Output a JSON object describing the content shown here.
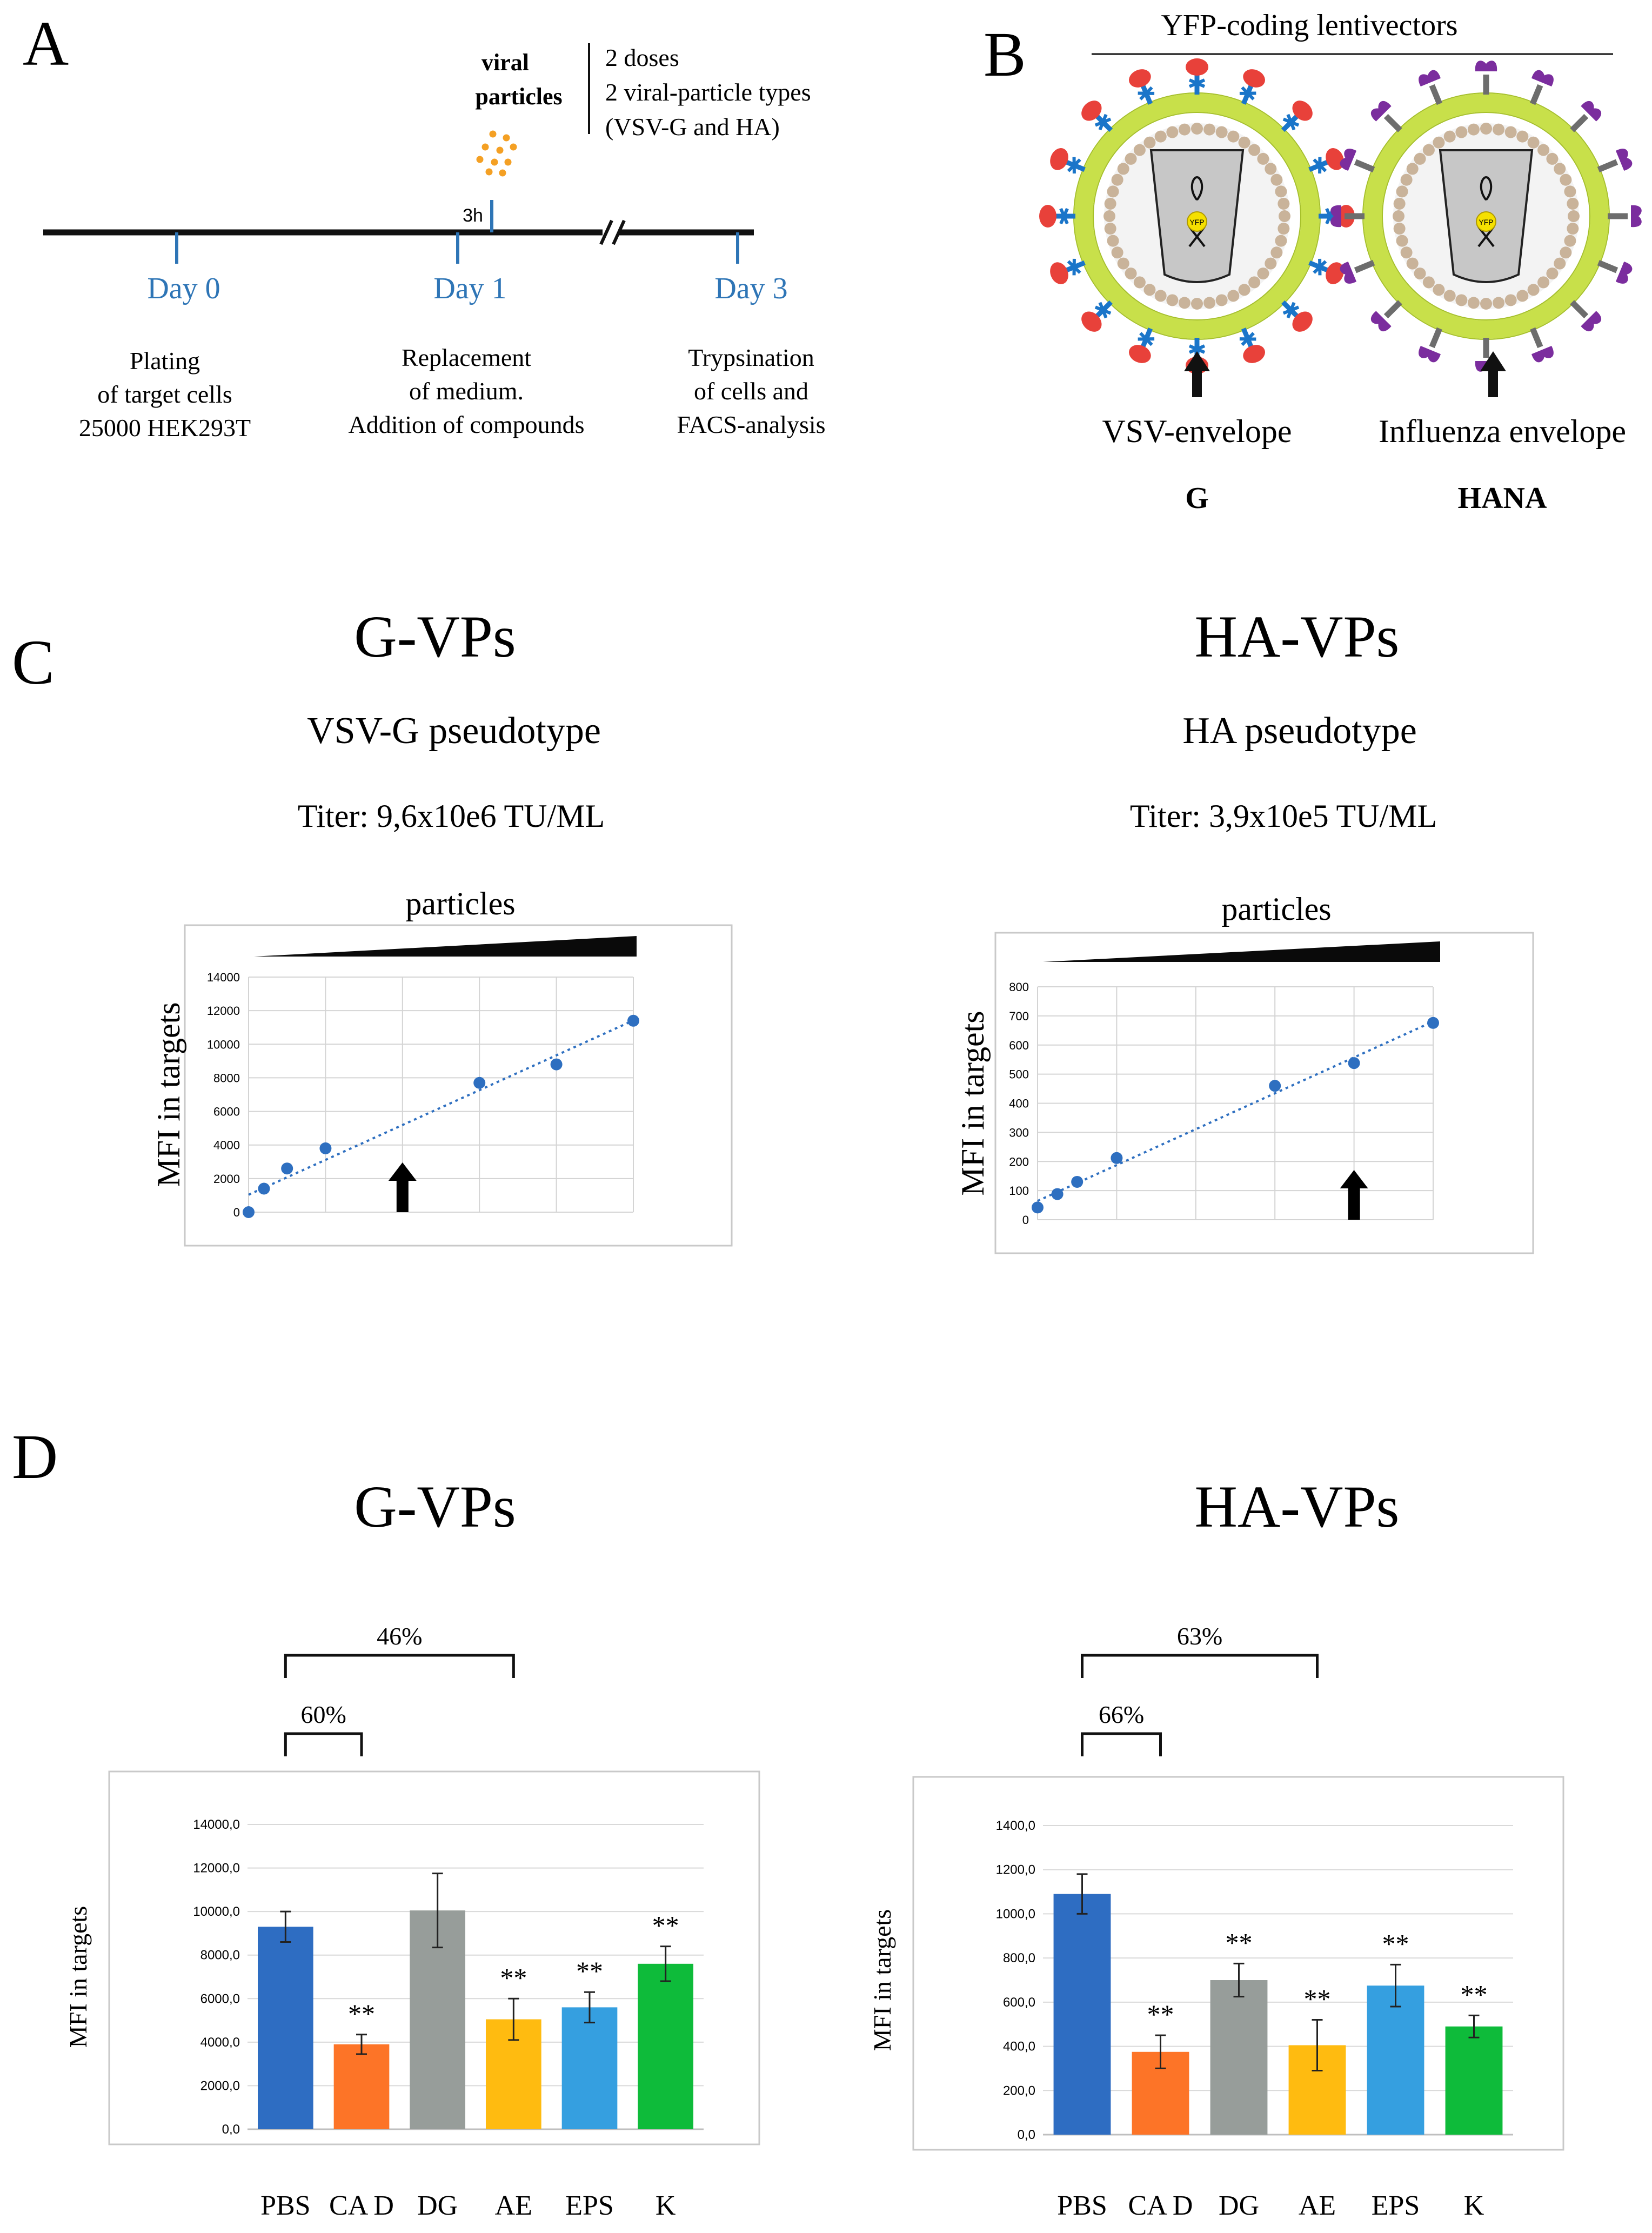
{
  "panel_labels": {
    "a": "A",
    "b": "B",
    "c": "C",
    "d": "D"
  },
  "panel_a": {
    "particles_label_line1": "viral",
    "particles_label_line2": "particles",
    "notes": [
      "2 doses",
      "2 viral-particle types",
      "(VSV-G and HA)"
    ],
    "time_marker": "3h",
    "days": [
      {
        "label": "Day 0",
        "lines": [
          "Plating",
          "of target cells",
          "25000 HEK293T"
        ]
      },
      {
        "label": "Day 1",
        "lines": [
          "Replacement",
          "of medium.",
          "Addition of compounds"
        ]
      },
      {
        "label": "Day 3",
        "lines": [
          "Trypsination",
          "of cells and",
          "FACS-analysis"
        ]
      }
    ],
    "day_color": "#2e75b6",
    "dot_color": "#f4a024"
  },
  "panel_b": {
    "title": "YFP-coding lentivectors",
    "core_label": "YFP",
    "left": {
      "envelope": "VSV-envelope",
      "short": "G"
    },
    "right": {
      "envelope": "Influenza envelope",
      "short": "HANA"
    },
    "membrane_color": "#c8e04a",
    "capsid_color": "#c9b39a",
    "vsv_head_color": "#e8413a",
    "vsv_stem_color": "#1a75c9",
    "ha_head_color": "#7b2d9e",
    "ha_stem_color": "#6d6d6d"
  },
  "panel_c": [
    {
      "title": "G-VPs",
      "subtitle": "VSV-G pseudotype",
      "titer": "Titer: 9,6x10e6 TU/ML",
      "wedge_label": "particles"
    },
    {
      "title": "HA-VPs",
      "subtitle": "HA pseudotype",
      "titer": "Titer: 3,9x10e5 TU/ML",
      "wedge_label": "particles"
    }
  ],
  "panel_d": [
    {
      "title": "G-VPs",
      "bracket_outer": "46%",
      "bracket_inner": "60%",
      "significance": "**"
    },
    {
      "title": "HA-VPs",
      "bracket_outer": "63%",
      "bracket_inner": "66%",
      "significance": "**"
    }
  ],
  "chart_data": [
    {
      "type": "scatter",
      "ylabel": "MFI in targets",
      "ylim": [
        0,
        14000
      ],
      "yticks": [
        0,
        2000,
        4000,
        6000,
        8000,
        10000,
        12000,
        14000
      ],
      "x": [
        0,
        0.2,
        0.5,
        1.0,
        3.0,
        4.0,
        5.0
      ],
      "y": [
        0,
        1400,
        2600,
        3800,
        7700,
        8800,
        11400
      ],
      "trendline": "linear",
      "arrow_at_x": 2.0,
      "grid": true,
      "color": "#2e6fc0"
    },
    {
      "type": "scatter",
      "ylabel": "MFI in targets",
      "ylim": [
        0,
        800
      ],
      "yticks": [
        0,
        100,
        200,
        300,
        400,
        500,
        600,
        700,
        800
      ],
      "x": [
        0,
        0.25,
        0.5,
        1.0,
        3.0,
        4.0,
        5.0
      ],
      "y": [
        42,
        88,
        130,
        212,
        460,
        538,
        676
      ],
      "trendline": "linear",
      "arrow_at_x": 4.0,
      "grid": true,
      "color": "#2e6fc0"
    },
    {
      "type": "bar",
      "ylabel": "MFI in targets",
      "ylim": [
        0,
        14000
      ],
      "ytick_labels": [
        "0,0",
        "2000,0",
        "4000,0",
        "6000,0",
        "8000,0",
        "10000,0",
        "12000,0",
        "14000,0"
      ],
      "categories": [
        "PBS",
        "CA D",
        "DG",
        "AE",
        "EPS",
        "K"
      ],
      "values": [
        9300,
        3900,
        10050,
        5050,
        5600,
        7600
      ],
      "errors": [
        700,
        450,
        1700,
        950,
        700,
        800
      ],
      "significant": [
        false,
        true,
        false,
        true,
        true,
        true
      ],
      "colors": [
        "#2e6dc2",
        "#fd7427",
        "#979d9a",
        "#ffbb10",
        "#359fe0",
        "#0ebb3a"
      ]
    },
    {
      "type": "bar",
      "ylabel": "MFI in targets",
      "ylim": [
        0,
        1400
      ],
      "ytick_labels": [
        "0,0",
        "200,0",
        "400,0",
        "600,0",
        "800,0",
        "1000,0",
        "1200,0",
        "1400,0"
      ],
      "categories": [
        "PBS",
        "CA D",
        "DG",
        "AE",
        "EPS",
        "K"
      ],
      "values": [
        1090,
        375,
        700,
        405,
        675,
        490
      ],
      "errors": [
        90,
        75,
        75,
        115,
        95,
        50
      ],
      "significant": [
        false,
        true,
        true,
        true,
        true,
        true
      ],
      "colors": [
        "#2e6dc2",
        "#fd7427",
        "#979d9a",
        "#ffbb10",
        "#359fe0",
        "#0ebb3a"
      ]
    }
  ]
}
